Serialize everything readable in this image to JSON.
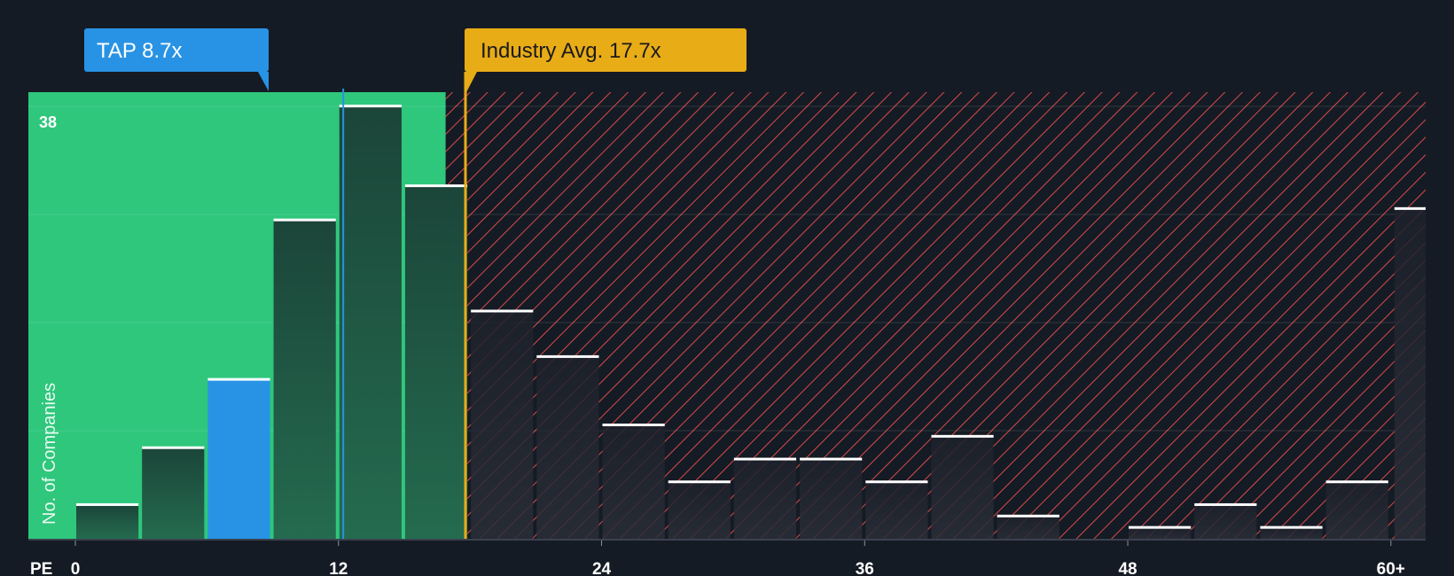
{
  "chart_data": {
    "type": "bar",
    "title": "",
    "xlabel": "PE",
    "ylabel": "No. of Companies",
    "xlim": [
      0,
      61
    ],
    "ylim": [
      0,
      39
    ],
    "x_ticks": [
      {
        "value": 0,
        "label": "0"
      },
      {
        "value": 12,
        "label": "12"
      },
      {
        "value": 24,
        "label": "24"
      },
      {
        "value": 36,
        "label": "36"
      },
      {
        "value": 48,
        "label": "48"
      },
      {
        "value": 60,
        "label": "60+"
      }
    ],
    "y_tick_label": {
      "value": 38,
      "label": "38"
    },
    "bin_width": 3,
    "bars": [
      {
        "x_start": 0,
        "value": 3,
        "highlight": false
      },
      {
        "x_start": 3,
        "value": 8,
        "highlight": false
      },
      {
        "x_start": 6,
        "value": 14,
        "highlight": true
      },
      {
        "x_start": 9,
        "value": 28,
        "highlight": false
      },
      {
        "x_start": 12,
        "value": 38,
        "highlight": false
      },
      {
        "x_start": 15,
        "value": 31,
        "highlight": false
      },
      {
        "x_start": 18,
        "value": 20,
        "highlight": false
      },
      {
        "x_start": 21,
        "value": 16,
        "highlight": false
      },
      {
        "x_start": 24,
        "value": 10,
        "highlight": false
      },
      {
        "x_start": 27,
        "value": 5,
        "highlight": false
      },
      {
        "x_start": 30,
        "value": 7,
        "highlight": false
      },
      {
        "x_start": 33,
        "value": 7,
        "highlight": false
      },
      {
        "x_start": 36,
        "value": 5,
        "highlight": false
      },
      {
        "x_start": 39,
        "value": 9,
        "highlight": false
      },
      {
        "x_start": 42,
        "value": 2,
        "highlight": false
      },
      {
        "x_start": 45,
        "value": 0,
        "highlight": false
      },
      {
        "x_start": 48,
        "value": 1,
        "highlight": false
      },
      {
        "x_start": 51,
        "value": 3,
        "highlight": false
      },
      {
        "x_start": 54,
        "value": 1,
        "highlight": false
      },
      {
        "x_start": 57,
        "value": 5,
        "highlight": false
      },
      {
        "x_start": 60,
        "value": 29,
        "highlight": false
      }
    ],
    "subject": {
      "label": "TAP 8.7x",
      "value": 8.7
    },
    "industry_average": {
      "label": "Industry Avg. 17.7x",
      "value": 17.7
    },
    "colors": {
      "background": "#151b24",
      "below_average_region": "#2ec77c",
      "above_average_hatch": "#d94a4a",
      "bar_in_green": "#1e4d3d",
      "bar_in_red": "#222631",
      "bar_cap": "#ffffff",
      "subject_bar": "#2893e4",
      "subject_callout": "#2893e4",
      "industry_callout": "#e8ac17",
      "axis_text": "#ffffff"
    }
  }
}
